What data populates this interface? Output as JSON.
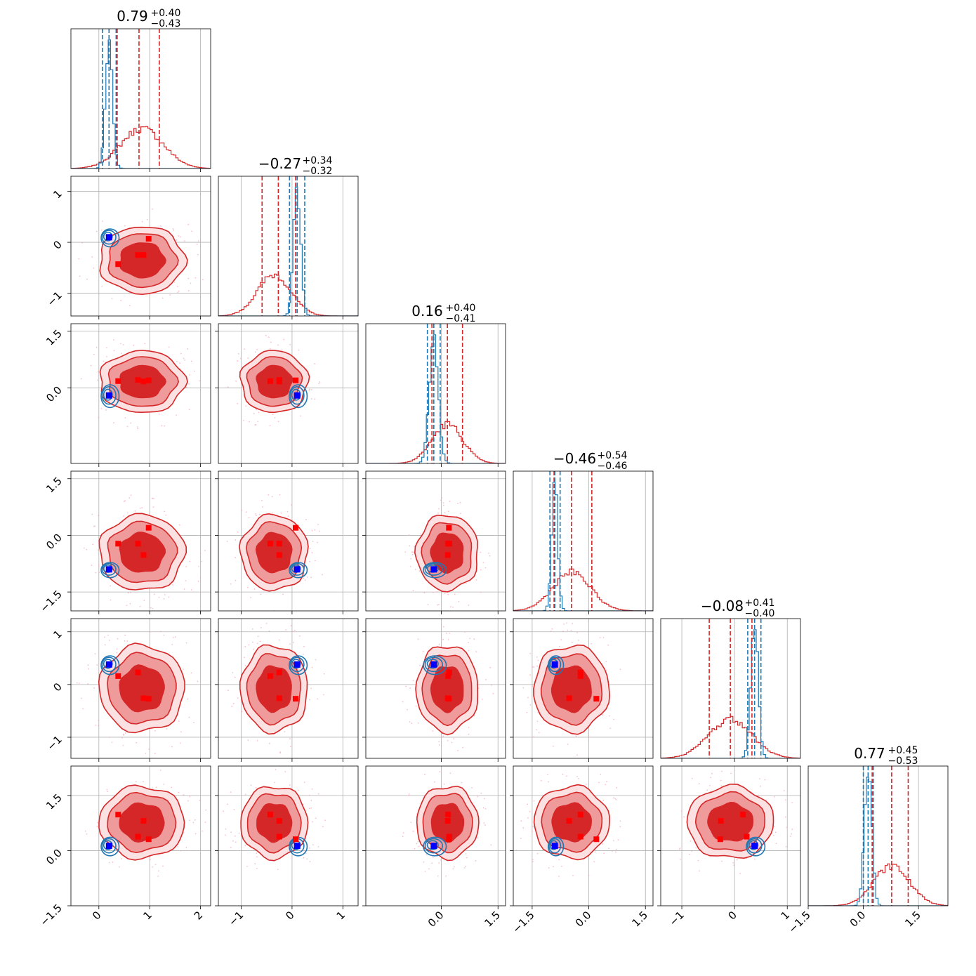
{
  "chart_data": {
    "type": "corner",
    "parameters": 6,
    "colors": {
      "samples_a": "#d62728",
      "samples_b": "#1f77b4",
      "truth_a": "#ff0000",
      "truth_b": "#0000ff"
    },
    "grid": true,
    "panel_titles": [
      {
        "value": "0.79",
        "plus": "+0.40",
        "minus": "−0.43"
      },
      {
        "value": "−0.27",
        "plus": "+0.34",
        "minus": "−0.32"
      },
      {
        "value": "0.16",
        "plus": "+0.40",
        "minus": "−0.41"
      },
      {
        "value": "−0.46",
        "plus": "+0.54",
        "minus": "−0.46"
      },
      {
        "value": "−0.08",
        "plus": "+0.41",
        "minus": "−0.40"
      },
      {
        "value": "0.77",
        "plus": "+0.45",
        "minus": "−0.53"
      }
    ],
    "axes": [
      {
        "range": [
          -0.55,
          2.2
        ],
        "ticks": [
          0,
          1,
          2
        ],
        "tick_labels": [
          "0",
          "1",
          "2"
        ]
      },
      {
        "range": [
          -1.45,
          1.3
        ],
        "ticks": [
          -1,
          0,
          1
        ],
        "tick_labels": [
          "−1",
          "0",
          "1"
        ]
      },
      {
        "range": [
          -2.0,
          1.7
        ],
        "ticks": [
          0.0,
          1.5
        ],
        "tick_labels": [
          "0.0",
          "1.5"
        ]
      },
      {
        "range": [
          -2.0,
          1.7
        ],
        "ticks": [
          -1.5,
          0.0,
          1.5
        ],
        "tick_labels": [
          "−1.5",
          "0.0",
          "1.5"
        ]
      },
      {
        "range": [
          -1.4,
          1.25
        ],
        "ticks": [
          -1,
          0,
          1
        ],
        "tick_labels": [
          "−1",
          "0",
          "1"
        ]
      },
      {
        "range": [
          -1.5,
          2.3
        ],
        "ticks": [
          -1.5,
          0.0,
          1.5
        ],
        "tick_labels": [
          "−1.5",
          "0.0",
          "1.5"
        ]
      }
    ],
    "x_tick_override": {
      "2": {
        "ticks": [
          0.0,
          1.5
        ],
        "tick_labels": [
          "0.0",
          "1.5"
        ]
      }
    },
    "y_tick_override": {
      "2": {
        "ticks": [
          0.0,
          1.5
        ],
        "tick_labels": [
          "0.0",
          "1.5"
        ]
      }
    },
    "red_distribution": {
      "mean": [
        0.85,
        -0.35,
        0.16,
        -0.46,
        -0.08,
        0.77
      ],
      "sd": [
        0.42,
        0.33,
        0.41,
        0.5,
        0.41,
        0.49
      ]
    },
    "blue_distribution": {
      "mean": [
        0.2,
        0.1,
        -0.2,
        -0.9,
        0.38,
        0.13
      ],
      "sd": [
        0.07,
        0.07,
        0.12,
        0.08,
        0.07,
        0.1
      ]
    },
    "red_quantile_lines": [
      [
        0.36,
        0.79,
        1.19
      ],
      [
        -0.59,
        -0.27,
        0.07
      ],
      [
        -0.25,
        0.16,
        0.56
      ],
      [
        -0.92,
        -0.46,
        0.08
      ],
      [
        -0.48,
        -0.08,
        0.33
      ],
      [
        0.24,
        0.77,
        1.22
      ]
    ],
    "blue_quantile_lines": [
      [
        0.07,
        0.2,
        0.34
      ],
      [
        -0.05,
        0.1,
        0.25
      ],
      [
        -0.37,
        -0.2,
        -0.03
      ],
      [
        -1.03,
        -0.9,
        -0.76
      ],
      [
        0.25,
        0.38,
        0.5
      ],
      [
        0.0,
        0.13,
        0.27
      ]
    ],
    "red_markers": [
      [
        0.38,
        -0.43,
        0.18,
        -0.22,
        0.16,
        0.98
      ],
      [
        0.77,
        -0.25,
        0.21,
        -0.22,
        0.23,
        0.38
      ],
      [
        0.88,
        -0.25,
        0.17,
        -0.52,
        -0.26,
        0.81
      ],
      [
        0.98,
        0.07,
        0.2,
        0.2,
        -0.27,
        0.31
      ]
    ],
    "blue_marker": [
      0.2,
      0.1,
      -0.2,
      -0.9,
      0.38,
      0.13
    ]
  }
}
